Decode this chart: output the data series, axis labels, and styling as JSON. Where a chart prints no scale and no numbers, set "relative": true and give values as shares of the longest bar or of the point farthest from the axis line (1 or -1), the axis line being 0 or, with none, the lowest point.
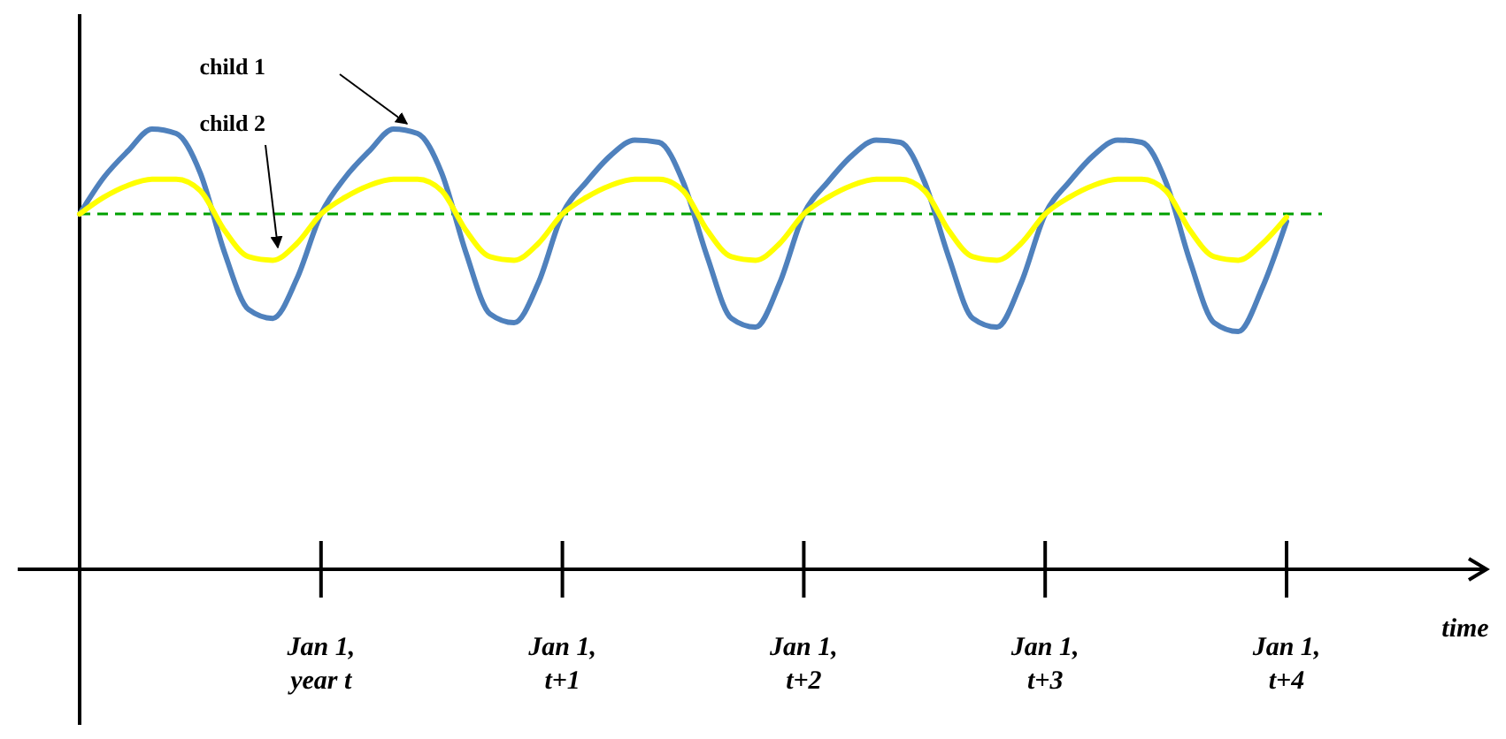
{
  "chart_data": {
    "type": "line",
    "relative": true,
    "xlabel": "time",
    "categories": [
      null,
      null,
      null,
      null,
      null,
      null,
      null,
      null,
      null,
      null,
      "Jan 1,\nyear t",
      null,
      null,
      null,
      null,
      null,
      null,
      null,
      null,
      null,
      "Jan 1,\nt+1",
      null,
      null,
      null,
      null,
      null,
      null,
      null,
      null,
      null,
      "Jan 1,\nt+2",
      null,
      null,
      null,
      null,
      null,
      null,
      null,
      null,
      null,
      "Jan 1,\nt+3",
      null,
      null,
      null,
      null,
      null,
      null,
      null,
      null,
      null,
      "Jan 1,\nt+4"
    ],
    "series": [
      {
        "color": "#4f81bd",
        "values": [
          0.807,
          0.89,
          0.95,
          1,
          0.99,
          0.9,
          0.72,
          0.59,
          0.57,
          0.66,
          0.807,
          0.89,
          0.95,
          1,
          0.99,
          0.9,
          0.72,
          0.58,
          0.56,
          0.65,
          0.807,
          0.88,
          0.94,
          0.975,
          0.97,
          0.88,
          0.71,
          0.57,
          0.55,
          0.65,
          0.807,
          0.88,
          0.94,
          0.975,
          0.97,
          0.88,
          0.71,
          0.57,
          0.55,
          0.65,
          0.807,
          0.88,
          0.94,
          0.975,
          0.97,
          0.88,
          0.7,
          0.56,
          0.54,
          0.64,
          0.79
        ]
      },
      {
        "color": "#ffff00",
        "values": [
          0.807,
          0.845,
          0.872,
          0.886,
          0.886,
          0.86,
          0.77,
          0.71,
          0.702,
          0.74,
          0.807,
          0.845,
          0.872,
          0.886,
          0.886,
          0.86,
          0.77,
          0.71,
          0.702,
          0.74,
          0.807,
          0.845,
          0.872,
          0.886,
          0.886,
          0.86,
          0.77,
          0.71,
          0.702,
          0.74,
          0.807,
          0.845,
          0.872,
          0.886,
          0.886,
          0.86,
          0.77,
          0.71,
          0.702,
          0.74,
          0.807,
          0.845,
          0.872,
          0.886,
          0.886,
          0.86,
          0.77,
          0.71,
          0.702,
          0.74,
          0.8
        ]
      }
    ],
    "ref_lines": [
      {
        "axis": "y",
        "value": 0.807,
        "color": "#00a000",
        "line_style": "dashed"
      }
    ],
    "annotations": [
      "child 1",
      "child 2"
    ]
  }
}
